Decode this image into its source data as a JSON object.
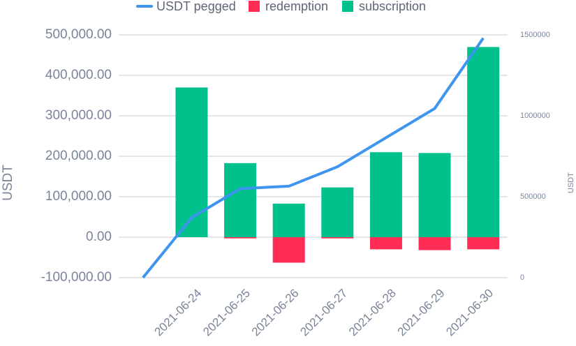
{
  "chart_data": {
    "type": "combo",
    "categories": [
      null,
      "2021-06-24",
      "2021-06-25",
      "2021-06-26",
      "2021-06-27",
      "2021-06-28",
      "2021-06-29",
      "2021-06-30"
    ],
    "series": [
      {
        "name": "USDT pegged",
        "type": "line",
        "axis": "y2",
        "color": "#3d95f0",
        "values": [
          0,
          370000,
          550000,
          565000,
          685000,
          865000,
          1045000,
          1480000
        ]
      },
      {
        "name": "redemption",
        "type": "bar",
        "color": "#ff2d55",
        "values": [
          null,
          0,
          -3000,
          -63000,
          -3000,
          -30000,
          -32000,
          -30000
        ]
      },
      {
        "name": "subscription",
        "type": "bar",
        "color": "#00c08b",
        "values": [
          null,
          370000,
          183000,
          83000,
          123000,
          210000,
          208000,
          470000
        ]
      }
    ],
    "ylabel": "USDT",
    "y2label": "USDT",
    "ylim": [
      -100000,
      500000
    ],
    "yticks": [
      {
        "value": -100000,
        "label": "-100,000.00"
      },
      {
        "value": 0,
        "label": "0.00"
      },
      {
        "value": 100000,
        "label": "100,000.00"
      },
      {
        "value": 200000,
        "label": "200,000.00"
      },
      {
        "value": 300000,
        "label": "300,000.00"
      },
      {
        "value": 400000,
        "label": "400,000.00"
      },
      {
        "value": 500000,
        "label": "500,000.00"
      }
    ],
    "y2lim": [
      0,
      1500000
    ],
    "y2ticks": [
      0,
      500000,
      1000000,
      1500000
    ],
    "grid": true,
    "legend": "top"
  }
}
